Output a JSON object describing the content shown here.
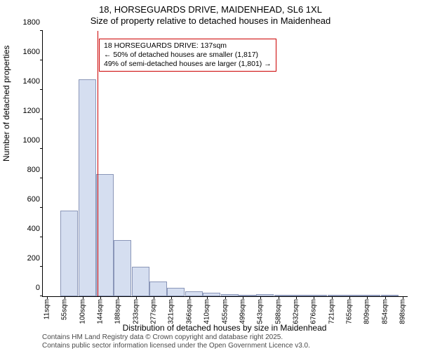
{
  "title_main": "18, HORSEGUARDS DRIVE, MAIDENHEAD, SL6 1XL",
  "title_sub": "Size of property relative to detached houses in Maidenhead",
  "ylabel": "Number of detached properties",
  "xlabel": "Distribution of detached houses by size in Maidenhead",
  "credit_line1": "Contains HM Land Registry data © Crown copyright and database right 2025.",
  "credit_line2": "Contains public sector information licensed under the Open Government Licence v3.0.",
  "chart": {
    "type": "histogram",
    "background_color": "#ffffff",
    "bar_fill": "#d5def0",
    "bar_border": "#8a96b8",
    "marker_color": "#cc0000",
    "ylim": [
      0,
      1800
    ],
    "yticks": [
      0,
      200,
      400,
      600,
      800,
      1000,
      1200,
      1400,
      1600,
      1800
    ],
    "x_range_sqm": [
      0,
      910
    ],
    "xtick_sqm": [
      11,
      55,
      100,
      144,
      188,
      233,
      277,
      321,
      366,
      410,
      455,
      499,
      543,
      588,
      632,
      676,
      721,
      765,
      809,
      854,
      898
    ],
    "xtick_suffix": "sqm",
    "bars": [
      {
        "x_sqm": 22,
        "value": 0
      },
      {
        "x_sqm": 66,
        "value": 580
      },
      {
        "x_sqm": 111,
        "value": 1470
      },
      {
        "x_sqm": 155,
        "value": 830
      },
      {
        "x_sqm": 199,
        "value": 380
      },
      {
        "x_sqm": 244,
        "value": 200
      },
      {
        "x_sqm": 288,
        "value": 100
      },
      {
        "x_sqm": 332,
        "value": 55
      },
      {
        "x_sqm": 377,
        "value": 35
      },
      {
        "x_sqm": 421,
        "value": 25
      },
      {
        "x_sqm": 466,
        "value": 15
      },
      {
        "x_sqm": 510,
        "value": 5
      },
      {
        "x_sqm": 554,
        "value": 15
      },
      {
        "x_sqm": 599,
        "value": 3
      },
      {
        "x_sqm": 643,
        "value": 10
      },
      {
        "x_sqm": 687,
        "value": 3
      },
      {
        "x_sqm": 732,
        "value": 10
      },
      {
        "x_sqm": 776,
        "value": 3
      },
      {
        "x_sqm": 820,
        "value": 2
      },
      {
        "x_sqm": 865,
        "value": 2
      },
      {
        "x_sqm": 905,
        "value": 0
      }
    ],
    "bar_width_sqm": 44,
    "marker_sqm": 137,
    "annotation": {
      "line1": "18 HORSEGUARDS DRIVE: 137sqm",
      "line2": "← 50% of detached houses are smaller (1,817)",
      "line3": "49% of semi-detached houses are larger (1,801) →",
      "left_sqm": 140,
      "top_y": 1750
    },
    "title_fontsize": 13,
    "label_fontsize": 12,
    "tick_fontsize": 11
  }
}
